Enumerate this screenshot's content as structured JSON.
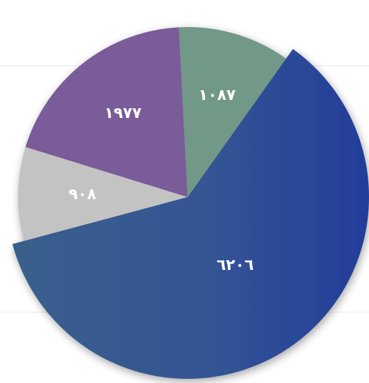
{
  "chart_data": {
    "type": "pie",
    "slices": [
      {
        "label": "٩٠٨",
        "value": 908,
        "color": "#c3c3c3"
      },
      {
        "label": "١٩٧٧",
        "value": 1977,
        "color": "#7a5c99"
      },
      {
        "label": "١٠٨٧",
        "value": 1087,
        "color": "#729888"
      },
      {
        "label": "٦٢٠٦",
        "value": 6206,
        "color": "#2f4d92"
      }
    ],
    "exploded_order": [
      0,
      1,
      2,
      3
    ],
    "legend": "none",
    "grid": false
  }
}
